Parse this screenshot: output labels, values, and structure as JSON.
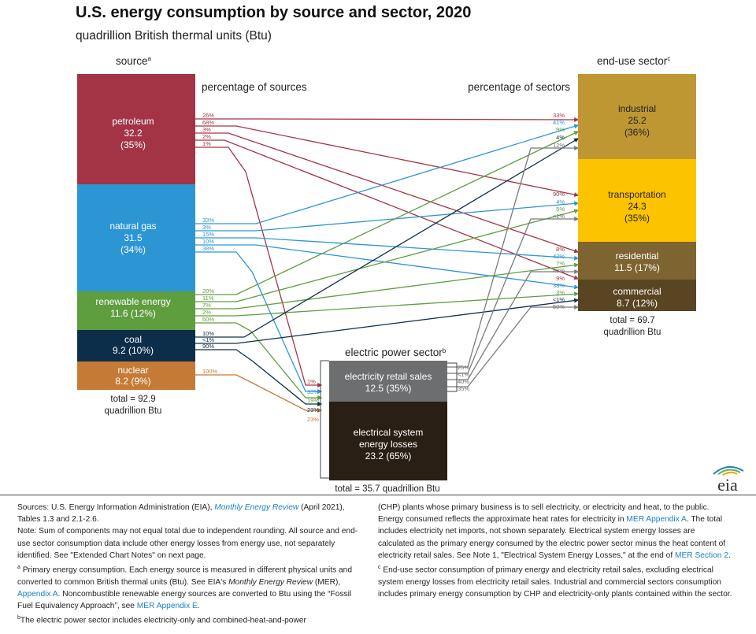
{
  "title": "U.S. energy consumption by source and sector, 2020",
  "subtitle": "quadrillion British thermal units (Btu)",
  "headers": {
    "source": "source",
    "source_sup": "a",
    "pct_sources": "percentage of sources",
    "pct_sectors": "percentage of sectors",
    "end_use": "end-use sector",
    "end_use_sup": "c",
    "electric": "electric power sector",
    "electric_sup": "b"
  },
  "colors": {
    "petroleum": "#a23446",
    "natural_gas": "#2c96d5",
    "renewable": "#5e9e3f",
    "coal": "#0d2e4a",
    "nuclear": "#c57a35",
    "industrial": "#be9732",
    "transportation": "#fcc300",
    "residential": "#7e6430",
    "commercial": "#5a4523",
    "retail": "#6d6e70",
    "losses": "#2a1f14",
    "flow_gray": "#7b7b7b"
  },
  "sources": [
    {
      "name": "petroleum",
      "value": "32.2",
      "pct": "(35%)"
    },
    {
      "name": "natural gas",
      "value": "31.5",
      "pct": "(34%)"
    },
    {
      "name": "renewable energy",
      "value_pct": "11.6 (12%)"
    },
    {
      "name": "coal",
      "value_pct": "9.2 (10%)"
    },
    {
      "name": "nuclear",
      "value_pct": "8.2 (9%)"
    }
  ],
  "source_total": {
    "line1": "total = 92.9",
    "line2": "quadrillion Btu"
  },
  "sectors": [
    {
      "name": "industrial",
      "value": "25.2",
      "pct": "(36%)"
    },
    {
      "name": "transportation",
      "value": "24.3",
      "pct": "(35%)"
    },
    {
      "name": "residential",
      "value_pct": "11.5 (17%)"
    },
    {
      "name": "commercial",
      "value_pct": "8.7 (12%)"
    }
  ],
  "sector_total": {
    "line1": "total = 69.7",
    "line2": "quadrillion Btu"
  },
  "electric": {
    "retail_line1": "electricity retail sales",
    "retail_line2": "12.5 (35%)",
    "losses_line1": "electrical system",
    "losses_line2": "energy losses",
    "losses_line3": "23.2 (65%)",
    "total": "total = 35.7 quadrillion Btu"
  },
  "source_pct_labels": {
    "petroleum": [
      "26%",
      "68%",
      "3%",
      "2%",
      "1%"
    ],
    "natural_gas": [
      "33%",
      "3%",
      "15%",
      "10%",
      "38%"
    ],
    "renewable": [
      "20%",
      "11%",
      "7%",
      "2%",
      "60%"
    ],
    "coal": [
      "10%",
      "<1%",
      "90%"
    ],
    "nuclear": [
      "100%"
    ]
  },
  "electric_in_labels": [
    "1%",
    "33%",
    "19%",
    "23%",
    "23%"
  ],
  "sector_pct_labels": {
    "industrial": [
      "33%",
      "41%",
      "9%",
      "4%",
      "12%"
    ],
    "transportation": [
      "90%",
      "4%",
      "5%",
      "<1%"
    ],
    "residential": [
      "8%",
      "42%",
      "7%",
      "43%"
    ],
    "commercial": [
      "9%",
      "38%",
      "3%",
      "<1%",
      "50%"
    ]
  },
  "retail_out_labels": [
    "25%",
    "<1%",
    "40%",
    "35%"
  ],
  "footer": {
    "sources_pre": "Sources: U.S. Energy Information Administration (EIA), ",
    "sources_link": "Monthly Energy Review",
    "sources_post": " (April 2021), Tables 1.3 and 2.1-2.6.",
    "note": "Note: Sum of components may not equal total due to independent rounding. All source and end-use sector consumption data include other energy losses from energy use, not separately identified. See \"Extended Chart Notes\" on next page.",
    "a_mark": "a",
    "a_text1": " Primary energy consumption. Each energy source is measured in different physical units and converted to common British thermal units (Btu). See EIA's ",
    "a_ital": "Monthly Energy Review",
    "a_text2": " (MER), ",
    "a_link1": "Appendix A",
    "a_text3": ". Noncombustible renewable energy sources are converted to Btu using the “Fossil Fuel Equivalency Approach”, see ",
    "a_link2": "MER Appendix E",
    "a_text4": ".",
    "b_mark": "b",
    "b_text1": " The electric power sector includes electricity-only and combined-heat-and-power (CHP) plants whose primary business is to sell electricity, or electricity and heat, to the public. Energy consumed reflects the approximate heat rates for electricity in ",
    "b_link1": "MER Appendix A",
    "b_text2": ". The total includes electricity net imports, not shown separately. Electrical system energy losses are calculated as the primary energy consumed by the electric power sector minus the heat content of electricity retail sales. See Note 1, \"Electrical System Energy Losses,\" at the end of ",
    "b_link2": "MER Section 2",
    "b_text3": ".",
    "c_mark": "c",
    "c_text": " End-use sector consumption of primary energy and electricity retail sales, excluding electrical system energy losses from electricity retail sales. Industrial and commercial sectors consumption includes primary energy consumption by CHP and electricity-only plants contained within the sector."
  },
  "logo_text": "eia"
}
